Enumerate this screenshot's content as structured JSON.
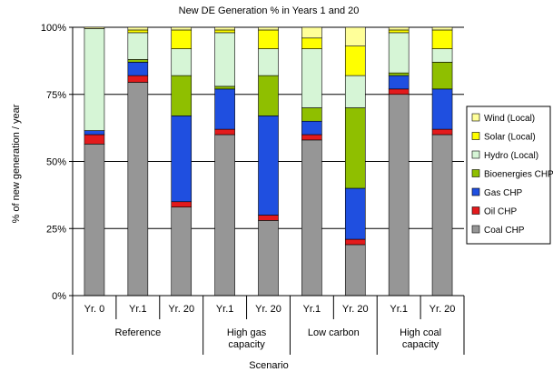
{
  "chart_data": {
    "type": "bar",
    "stacked": true,
    "percent_stacked": true,
    "title": "New DE Generation % in Years 1 and 20",
    "xlabel": "Scenario",
    "ylabel": "% of new generation / year",
    "ylim": [
      0,
      100
    ],
    "y_ticks": [
      "0%",
      "25%",
      "50%",
      "75%",
      "100%"
    ],
    "y_tick_values": [
      0,
      25,
      50,
      75,
      100
    ],
    "categories": [
      "Yr. 0",
      "Yr.1",
      "Yr. 20",
      "Yr.1",
      "Yr. 20",
      "Yr.1",
      "Yr. 20",
      "Yr.1",
      "Yr. 20"
    ],
    "groups": [
      {
        "label": "Reference",
        "span": [
          0,
          2
        ]
      },
      {
        "label": "High gas capacity",
        "lines": [
          "High gas",
          "capacity"
        ],
        "span": [
          3,
          4
        ]
      },
      {
        "label": "Low carbon",
        "span": [
          5,
          6
        ]
      },
      {
        "label": "High coal capacity",
        "lines": [
          "High coal",
          "capacity"
        ],
        "span": [
          7,
          8
        ]
      }
    ],
    "series": [
      {
        "name": "Coal CHP",
        "color": "#969696",
        "values": [
          56.5,
          79.5,
          33,
          60,
          28,
          58,
          19,
          75,
          60
        ]
      },
      {
        "name": "Oil CHP",
        "color": "#e31a1c",
        "values": [
          3.5,
          2.5,
          2,
          2,
          2,
          2,
          2,
          2,
          2
        ]
      },
      {
        "name": "Gas CHP",
        "color": "#1f4fe0",
        "values": [
          1.5,
          5,
          32,
          15,
          37,
          5,
          19,
          5,
          15
        ]
      },
      {
        "name": "Bioenergies CHP",
        "color": "#8fbf00",
        "values": [
          0,
          1,
          15,
          1,
          15,
          5,
          30,
          1,
          10
        ]
      },
      {
        "name": "Hydro (Local)",
        "color": "#d6f5d6",
        "values": [
          38,
          10,
          10,
          20,
          10,
          22,
          12,
          15,
          5
        ]
      },
      {
        "name": "Solar (Local)",
        "color": "#ffff00",
        "values": [
          0,
          1,
          7,
          1,
          7,
          4,
          11,
          1,
          7
        ]
      },
      {
        "name": "Wind (Local)",
        "color": "#ffff99",
        "values": [
          0.5,
          1,
          1,
          1,
          1,
          4,
          7,
          1,
          1
        ]
      }
    ],
    "legend_order": [
      "Wind (Local)",
      "Solar (Local)",
      "Hydro (Local)",
      "Bioenergies CHP",
      "Gas CHP",
      "Oil CHP",
      "Coal CHP"
    ],
    "legend_position": "right",
    "grid": true
  }
}
